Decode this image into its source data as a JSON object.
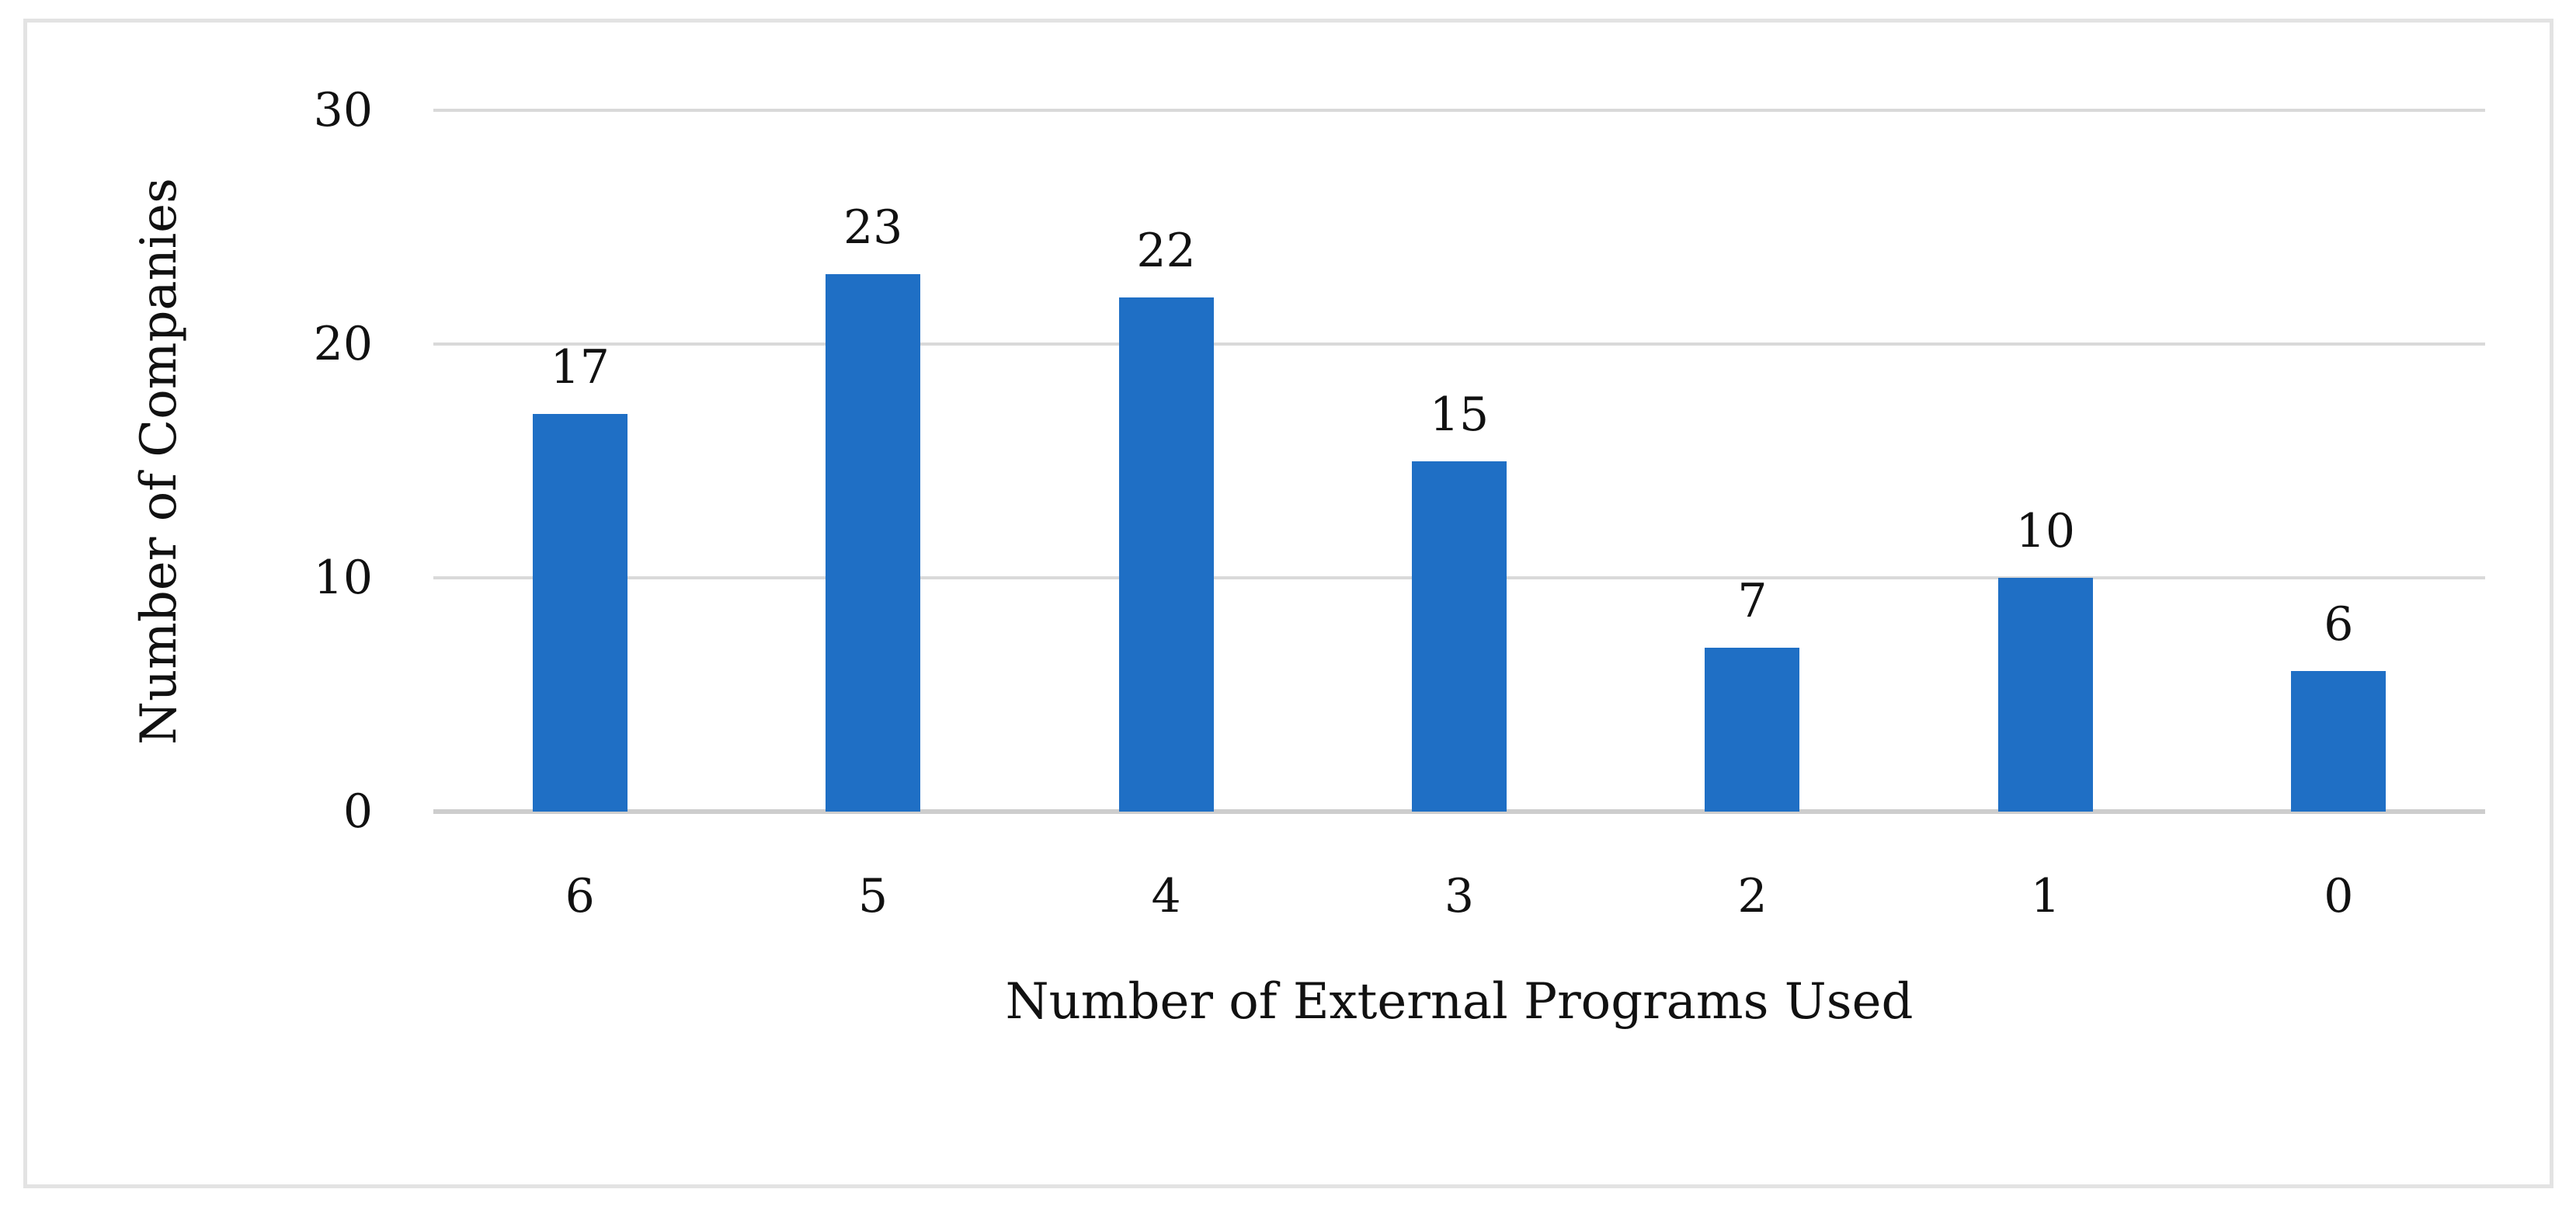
{
  "chart_data": {
    "type": "bar",
    "categories": [
      "6",
      "5",
      "4",
      "3",
      "2",
      "1",
      "0"
    ],
    "values": [
      17,
      23,
      22,
      15,
      7,
      10,
      6
    ],
    "title": "",
    "xlabel": "Number of External Programs Used",
    "ylabel": "Number of Companies",
    "ylim": [
      0,
      30
    ],
    "yticks": [
      0,
      10,
      20,
      30
    ],
    "grid": true,
    "legend_position": "none",
    "show_data_labels": true,
    "bar_color": "#1f6fc5",
    "gridline_color": "#d9d9d9",
    "axis_line_color": "#cdcdcd",
    "frame_border_color": "#e3e3e3",
    "text_color": "#111111",
    "background_color": "#ffffff"
  }
}
